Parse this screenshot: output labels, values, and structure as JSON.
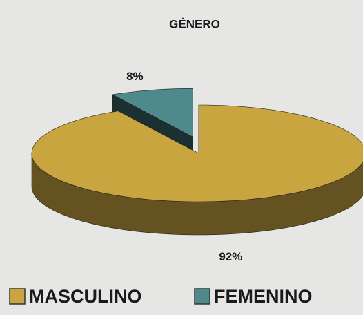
{
  "chart_data": {
    "type": "pie",
    "title": "GÉNERO",
    "categories": [
      "MASCULINO",
      "FEMENINO"
    ],
    "values": [
      92,
      8
    ],
    "value_labels": [
      "92%",
      "8%"
    ],
    "colors": [
      "#c8a53f",
      "#4e898c"
    ],
    "legend": "bottom"
  }
}
